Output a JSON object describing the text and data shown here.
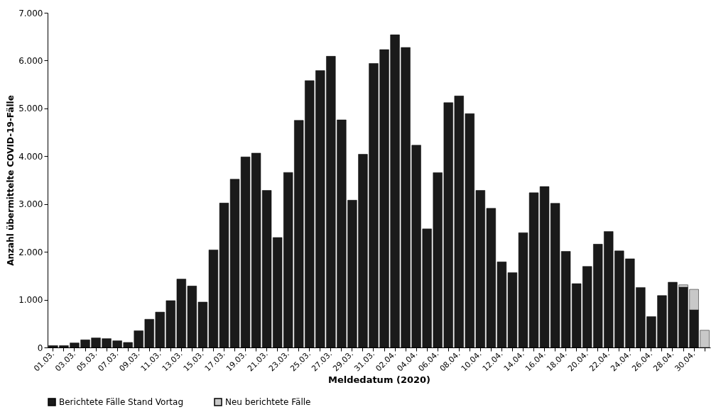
{
  "chart_data": {
    "type": "bar",
    "stacked": true,
    "xlabel": "Meldedatum (2020)",
    "ylabel": "Anzahl übermittelte COVID-19-Fälle",
    "categories": [
      "01.03.",
      null,
      "03.03.",
      null,
      "05.03.",
      null,
      "07.03.",
      null,
      "09.03.",
      null,
      "11.03.",
      null,
      "13.03.",
      null,
      "15.03.",
      null,
      "17.03.",
      null,
      "19.03.",
      null,
      "21.03.",
      null,
      "23.03.",
      null,
      "25.03.",
      null,
      "27.03.",
      null,
      "29.03.",
      null,
      "31.03.",
      null,
      "02.04.",
      null,
      "04.04.",
      null,
      "06.04.",
      null,
      "08.04.",
      null,
      "10.04.",
      null,
      "12.04.",
      null,
      "14.04.",
      null,
      "16.04.",
      null,
      "18.04.",
      null,
      "20.04.",
      null,
      "22.04.",
      null,
      "24.04.",
      null,
      "26.04.",
      null,
      "28.04.",
      null,
      "30.04.",
      null
    ],
    "series": [
      {
        "name": "Berichtete Fälle Stand Vortag",
        "color": "#1a1a1a",
        "values": [
          40,
          40,
          95,
          160,
          200,
          185,
          140,
          105,
          350,
          590,
          740,
          980,
          1430,
          1285,
          950,
          2040,
          3020,
          3520,
          3985,
          4065,
          3285,
          2300,
          3660,
          4750,
          5580,
          5790,
          6090,
          4760,
          3080,
          4040,
          5940,
          6230,
          6540,
          6275,
          4230,
          2480,
          3655,
          5120,
          5260,
          4890,
          3285,
          2910,
          1790,
          1565,
          2400,
          3235,
          3365,
          3015,
          2010,
          1335,
          1695,
          2160,
          2425,
          2020,
          1855,
          1255,
          645,
          1085,
          1365,
          1260,
          785,
          null
        ]
      },
      {
        "name": "Neu berichtete Fälle",
        "color": "#c8c8c8",
        "values": [
          null,
          null,
          null,
          null,
          null,
          null,
          null,
          null,
          null,
          null,
          null,
          null,
          null,
          null,
          null,
          null,
          null,
          null,
          null,
          null,
          null,
          null,
          null,
          null,
          null,
          null,
          null,
          null,
          null,
          null,
          null,
          null,
          null,
          null,
          null,
          null,
          null,
          null,
          null,
          null,
          null,
          null,
          null,
          null,
          null,
          null,
          null,
          null,
          null,
          null,
          null,
          null,
          null,
          null,
          null,
          null,
          null,
          null,
          null,
          50,
          430,
          360
        ]
      }
    ],
    "ylim": [
      0,
      7000
    ],
    "yticks": [
      0,
      {
        "value": 1000,
        "label": "1.000"
      },
      {
        "value": 2000,
        "label": "2.000"
      },
      {
        "value": 3000,
        "label": "3.000"
      },
      {
        "value": 4000,
        "label": "4.000"
      },
      {
        "value": 5000,
        "label": "5.000"
      },
      {
        "value": 6000,
        "label": "6.000"
      },
      {
        "value": 7000,
        "label": "7.000"
      }
    ],
    "grid": false,
    "legend": "bottom"
  }
}
